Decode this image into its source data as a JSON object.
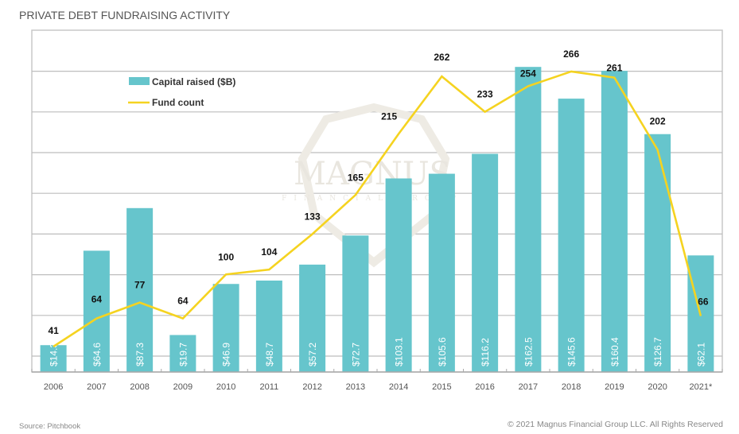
{
  "page": {
    "title": "PRIVATE DEBT FUNDRAISING ACTIVITY",
    "source": "Source: Pitchbook",
    "copyright": "© 2021 Magnus Financial Group LLC. All Rights Reserved",
    "watermark": {
      "main": "MAGNUS",
      "sub": "FINANCIAL GROUP"
    }
  },
  "chart_data": {
    "type": "bar",
    "title": "PRIVATE DEBT FUNDRAISING ACTIVITY",
    "xlabel": "",
    "ylabel": "",
    "categories": [
      "2006",
      "2007",
      "2008",
      "2009",
      "2010",
      "2011",
      "2012",
      "2013",
      "2014",
      "2015",
      "2016",
      "2017",
      "2018",
      "2019",
      "2020",
      "2021*"
    ],
    "series": [
      {
        "name": "Capital raised ($B)",
        "type": "bar",
        "color": "#66C5CC",
        "values": [
          14.3,
          64.6,
          87.3,
          19.7,
          46.9,
          48.7,
          57.2,
          72.7,
          103.1,
          105.6,
          116.2,
          162.5,
          145.6,
          160.4,
          126.7,
          62.1
        ],
        "labels": [
          "$14.3",
          "$64.6",
          "$87.3",
          "$19.7",
          "$46.9",
          "$48.7",
          "$57.2",
          "$72.7",
          "$103.1",
          "$105.6",
          "$116.2",
          "$162.5",
          "$145.6",
          "$160.4",
          "$126.7",
          "$62.1"
        ]
      },
      {
        "name": "Fund count",
        "type": "line",
        "color": "#F5D320",
        "values": [
          41,
          64,
          77,
          64,
          100,
          104,
          133,
          165,
          215,
          262,
          233,
          254,
          266,
          261,
          202,
          66
        ]
      }
    ],
    "legend": {
      "position": "top-left",
      "items": [
        "Capital raised ($B)",
        "Fund count"
      ]
    },
    "grid": true,
    "gridlines": 8,
    "ylim_bar": [
      0,
      182
    ],
    "ylim_line": [
      -21,
      300
    ]
  }
}
